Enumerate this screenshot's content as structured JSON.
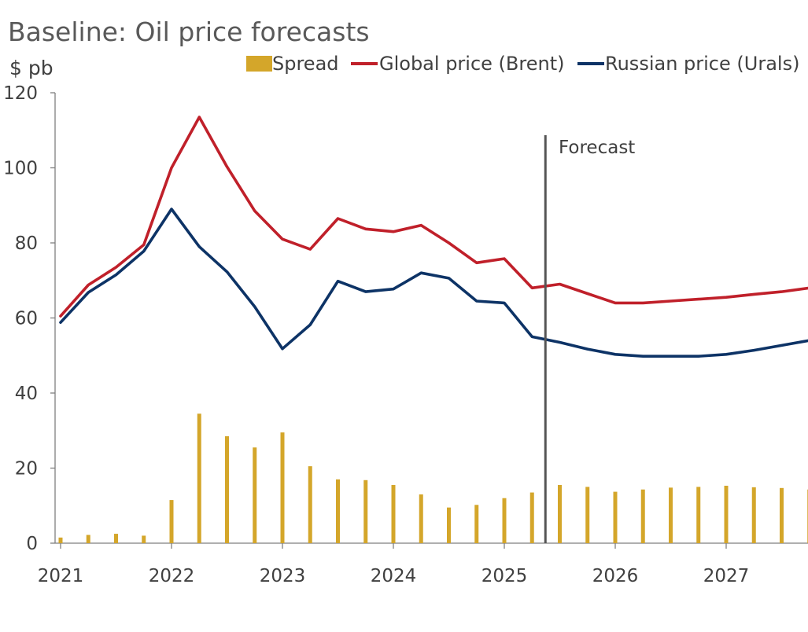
{
  "chart_data": {
    "type": "line",
    "title": "Baseline: Oil price forecasts",
    "ylabel": "$ pb",
    "xlabel": "",
    "ylim": [
      0,
      120
    ],
    "yticks": [
      "0",
      "20",
      "40",
      "60",
      "80",
      "100",
      "120"
    ],
    "xticks": [
      "2021",
      "2022",
      "2023",
      "2024",
      "2025",
      "2026",
      "2027"
    ],
    "x": [
      "2021Q1",
      "2021Q2",
      "2021Q3",
      "2021Q4",
      "2022Q1",
      "2022Q2",
      "2022Q3",
      "2022Q4",
      "2023Q1",
      "2023Q2",
      "2023Q3",
      "2023Q4",
      "2024Q1",
      "2024Q2",
      "2024Q3",
      "2024Q4",
      "2025Q1",
      "2025Q2",
      "2025Q3",
      "2025Q4",
      "2026Q1",
      "2026Q2",
      "2026Q3",
      "2026Q4",
      "2027Q1",
      "2027Q2",
      "2027Q3",
      "2027Q4"
    ],
    "series": [
      {
        "name": "Spread",
        "kind": "bar",
        "color": "#D4A62A",
        "values": [
          1.5,
          2.2,
          2.5,
          2.0,
          11.5,
          34.5,
          28.5,
          25.5,
          29.5,
          20.5,
          17.0,
          16.8,
          15.5,
          13.0,
          9.5,
          10.2,
          12.0,
          13.5,
          15.5,
          15.0,
          13.7,
          14.3,
          14.8,
          15.0,
          15.3,
          14.9,
          14.7,
          14.3
        ]
      },
      {
        "name": "Global price (Brent)",
        "kind": "line",
        "color": "#C0202A",
        "values": [
          60.5,
          68.8,
          73.5,
          79.5,
          100.0,
          113.5,
          100.3,
          88.5,
          81.0,
          78.3,
          86.5,
          83.7,
          83.0,
          84.7,
          80.0,
          74.7,
          75.8,
          68.0,
          69.0,
          66.5,
          64.0,
          64.0,
          64.5,
          65.0,
          65.5,
          66.3,
          67.0,
          68.0
        ]
      },
      {
        "name": "Russian price (Urals)",
        "kind": "line",
        "color": "#0D3366",
        "values": [
          58.8,
          66.8,
          71.5,
          77.8,
          89.0,
          79.0,
          72.3,
          63.0,
          51.8,
          58.2,
          69.8,
          67.0,
          67.7,
          72.0,
          70.6,
          64.5,
          64.0,
          55.0,
          53.5,
          51.7,
          50.3,
          49.8,
          49.8,
          49.8,
          50.3,
          51.4,
          52.7,
          54.0
        ]
      }
    ],
    "forecast_marker": {
      "label": "Forecast",
      "x": "2025Q2",
      "color": "#555555"
    },
    "legend": {
      "placement": "top-right",
      "entries": [
        "Spread",
        "Global price (Brent)",
        "Russian price (Urals)"
      ]
    },
    "grid": false
  }
}
